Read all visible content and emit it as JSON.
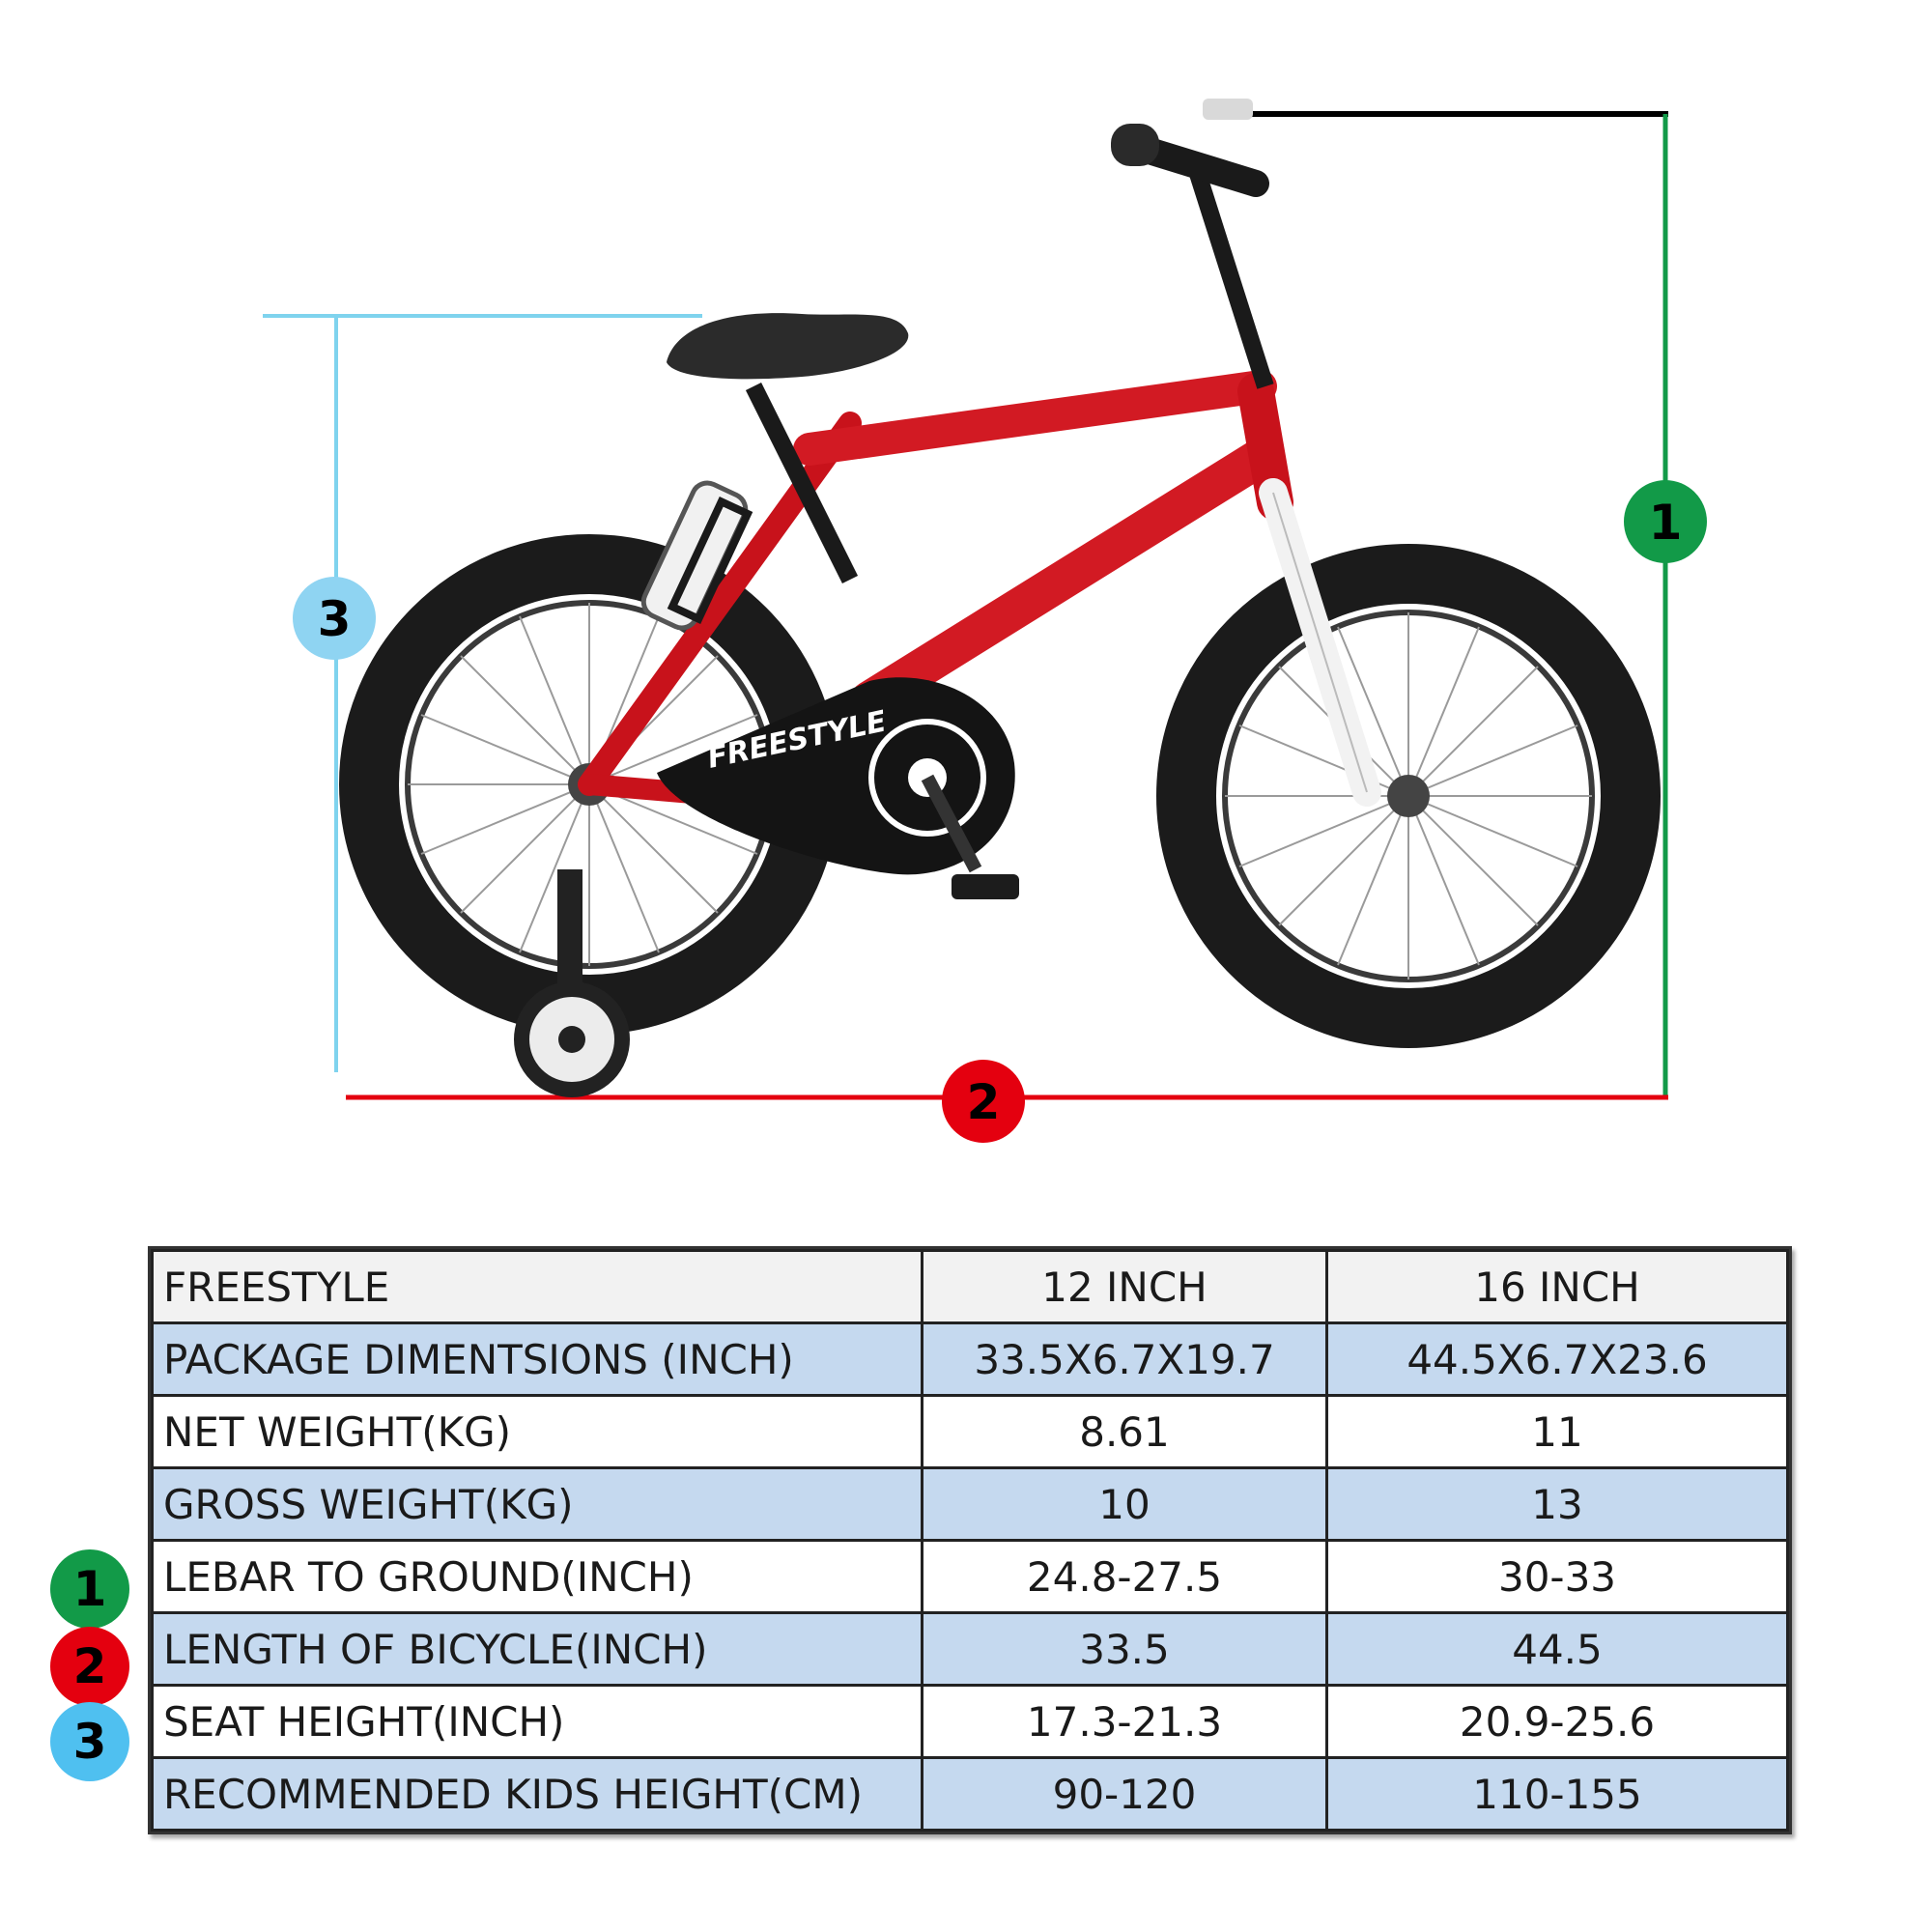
{
  "diagram": {
    "frame_text": "FREESTYLE",
    "badge_height": "1",
    "badge_length": "2",
    "badge_seat": "3",
    "colors": {
      "height": "#129a48",
      "length": "#e4000f",
      "seat": "#4fc0f0",
      "frame": "#c8121b"
    }
  },
  "table": {
    "header": {
      "label": "FREESTYLE",
      "col1": "12 INCH",
      "col2": "16 INCH"
    },
    "rows": [
      {
        "badge": "",
        "label": "PACKAGE DIMENTSIONS (INCH)",
        "v12": "33.5X6.7X19.7",
        "v16": "44.5X6.7X23.6"
      },
      {
        "badge": "",
        "label": "NET WEIGHT(KG)",
        "v12": "8.61",
        "v16": "11"
      },
      {
        "badge": "",
        "label": "GROSS WEIGHT(KG)",
        "v12": "10",
        "v16": "13"
      },
      {
        "badge": "1",
        "label": "LEBAR TO GROUND(INCH)",
        "v12": "24.8-27.5",
        "v16": "30-33"
      },
      {
        "badge": "2",
        "label": "LENGTH OF BICYCLE(INCH)",
        "v12": "33.5",
        "v16": "44.5"
      },
      {
        "badge": "3",
        "label": "SEAT HEIGHT(INCH)",
        "v12": "17.3-21.3",
        "v16": "20.9-25.6"
      },
      {
        "badge": "",
        "label": "RECOMMENDED KIDS HEIGHT(CM)",
        "v12": "90-120",
        "v16": "110-155"
      }
    ]
  }
}
